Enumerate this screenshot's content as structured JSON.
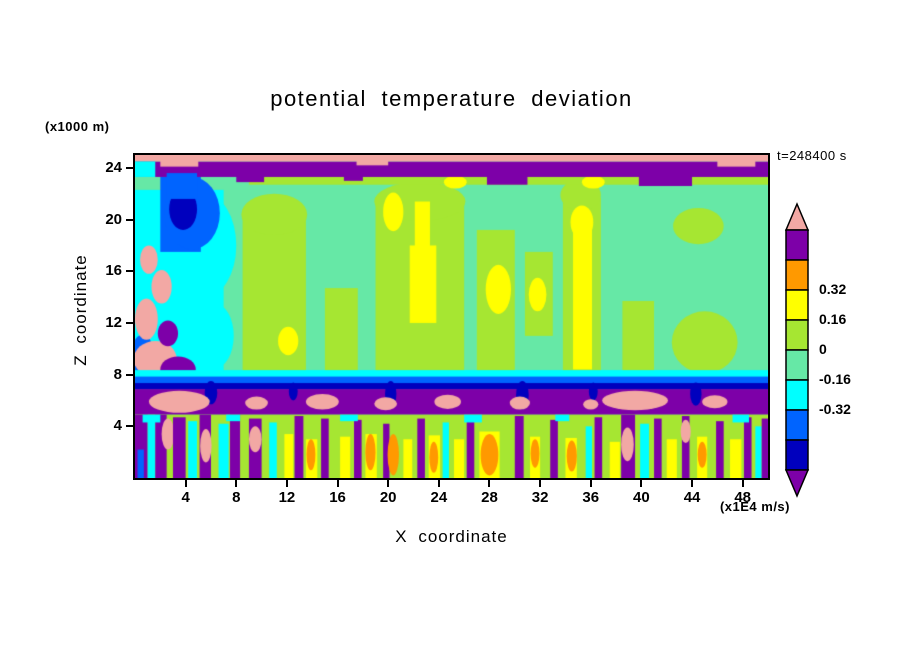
{
  "title": "potential temperature deviation",
  "annotation_time": "t=248400 s",
  "axes": {
    "x": {
      "label": "X coordinate",
      "units_note": "(x1E4 m/s)",
      "ticks": [
        4,
        8,
        12,
        16,
        20,
        24,
        28,
        32,
        36,
        40,
        44,
        48
      ]
    },
    "z": {
      "label": "Z coordinate",
      "units_note": "(x1000 m)",
      "ticks": [
        4,
        8,
        12,
        16,
        20,
        24
      ]
    }
  },
  "colorbar": {
    "labels": [
      "0.32",
      "0.16",
      "0",
      "-0.16",
      "-0.32"
    ],
    "segment_colors": [
      "#7D00A8",
      "#FF9900",
      "#FFFF00",
      "#A6E632",
      "#66E8A6",
      "#00FFFF",
      "#0064FF",
      "#0000BE"
    ],
    "arrow_top_color": "#F2A8A4",
    "arrow_bottom_color": "#7D00A8"
  },
  "chart_data": {
    "type": "heatmap",
    "title": "potential temperature deviation",
    "xlabel": "X coordinate (x1E4 m/s)",
    "ylabel": "Z coordinate (x1000 m)",
    "x_ticks": [
      4,
      8,
      12,
      16,
      20,
      24,
      28,
      32,
      36,
      40,
      44,
      48
    ],
    "z_ticks": [
      4,
      8,
      12,
      16,
      20,
      24
    ],
    "x_range": [
      0,
      50
    ],
    "z_range": [
      0,
      25
    ],
    "grid": false,
    "time_annotation": "t=248400 s",
    "levels": [
      -0.48,
      -0.4,
      -0.32,
      -0.16,
      0,
      0.16,
      0.32,
      0.4,
      0.48
    ],
    "colors": [
      "#7D00A8",
      "#0000BE",
      "#0064FF",
      "#00FFFF",
      "#66E8A6",
      "#A6E632",
      "#FFFF00",
      "#FF9900",
      "#7D00A8",
      "#F2A8A4"
    ],
    "regions": [
      [
        "r",
        0,
        0,
        50,
        25,
        -0.08
      ],
      [
        "r",
        0,
        7.8,
        7,
        14.5,
        -0.24
      ],
      [
        "e",
        5.5,
        18,
        2.5,
        4,
        -0.24
      ],
      [
        "e",
        6.3,
        11,
        1.5,
        2.5,
        -0.24
      ],
      [
        "r",
        2,
        17.5,
        3.2,
        5.8,
        -0.36
      ],
      [
        "e",
        4.5,
        20.5,
        2.2,
        2.8,
        -0.36
      ],
      [
        "e",
        3.8,
        20.8,
        1.1,
        1.6,
        -0.44
      ],
      [
        "e",
        0.6,
        9.5,
        0.9,
        1.6,
        -0.36
      ],
      [
        "e",
        1.6,
        9.2,
        1.7,
        1.4,
        0.5
      ],
      [
        "e",
        3.4,
        8.4,
        1.4,
        1.0,
        -0.5
      ],
      [
        "e",
        0.9,
        12.3,
        0.9,
        1.6,
        0.5
      ],
      [
        "e",
        2.1,
        14.8,
        0.8,
        1.3,
        0.5
      ],
      [
        "e",
        1.1,
        16.9,
        0.7,
        1.1,
        0.5
      ],
      [
        "e",
        2.6,
        11.2,
        0.8,
        1.0,
        -0.5
      ],
      [
        "r",
        8.5,
        8.2,
        5,
        12,
        0.08
      ],
      [
        "e",
        11,
        20.4,
        2.6,
        1.6,
        0.08
      ],
      [
        "r",
        15,
        8.2,
        2.6,
        6.5,
        0.08
      ],
      [
        "r",
        19,
        8.2,
        7,
        13,
        0.08
      ],
      [
        "e",
        22.5,
        21.4,
        3.6,
        1.5,
        0.08
      ],
      [
        "r",
        27,
        8.2,
        3,
        11,
        0.08
      ],
      [
        "r",
        30.8,
        11,
        2.2,
        6.5,
        0.08
      ],
      [
        "r",
        33.8,
        8.2,
        3,
        13.5,
        0.08
      ],
      [
        "e",
        35.2,
        21.9,
        1.6,
        1.2,
        0.08
      ],
      [
        "r",
        38.5,
        8.2,
        2.5,
        5.5,
        0.08
      ],
      [
        "e",
        45,
        10.5,
        2.6,
        2.4,
        0.08
      ],
      [
        "r",
        9,
        22.7,
        41,
        0.9,
        0.08
      ],
      [
        "e",
        44.5,
        19.5,
        2.0,
        1.4,
        0.08
      ],
      [
        "r",
        21.7,
        12,
        2.1,
        6,
        0.24
      ],
      [
        "r",
        22.1,
        17.8,
        1.2,
        3.6,
        0.24
      ],
      [
        "e",
        28.7,
        14.6,
        1.0,
        1.9,
        0.24
      ],
      [
        "r",
        34.6,
        8.4,
        1.5,
        11,
        0.24
      ],
      [
        "e",
        35.3,
        19.8,
        0.9,
        1.3,
        0.24
      ],
      [
        "e",
        20.4,
        20.6,
        0.8,
        1.5,
        0.24
      ],
      [
        "e",
        12.1,
        10.6,
        0.8,
        1.1,
        0.24
      ],
      [
        "e",
        31.8,
        14.2,
        0.7,
        1.3,
        0.24
      ],
      [
        "e",
        25.3,
        22.9,
        0.9,
        0.5,
        0.24
      ],
      [
        "e",
        36.2,
        22.9,
        0.9,
        0.5,
        0.24
      ],
      [
        "r",
        0,
        23.3,
        50,
        1.2,
        -0.5
      ],
      [
        "r",
        8,
        22.9,
        2.2,
        0.7,
        -0.5
      ],
      [
        "r",
        27.8,
        22.7,
        3.2,
        0.9,
        -0.5
      ],
      [
        "r",
        39.8,
        22.6,
        4.2,
        1.0,
        -0.5
      ],
      [
        "r",
        16.5,
        23.0,
        1.5,
        0.5,
        -0.5
      ],
      [
        "r",
        0,
        24.5,
        50,
        0.5,
        0.5
      ],
      [
        "r",
        2,
        24.1,
        3,
        0.5,
        0.5
      ],
      [
        "r",
        17.5,
        24.2,
        2.5,
        0.4,
        0.5
      ],
      [
        "r",
        46,
        24.1,
        3,
        0.5,
        0.5
      ],
      [
        "r",
        2.5,
        21.6,
        2.4,
        2.0,
        -0.36
      ],
      [
        "r",
        0,
        23.3,
        1.6,
        1.2,
        -0.24
      ],
      [
        "r",
        0,
        7.8,
        50,
        0.55,
        -0.24
      ],
      [
        "r",
        0,
        7.3,
        50,
        0.55,
        -0.36
      ],
      [
        "r",
        0,
        6.85,
        50,
        0.5,
        -0.44
      ],
      [
        "r",
        0,
        4.9,
        50,
        1.98,
        -0.5
      ],
      [
        "e",
        6,
        6.6,
        0.5,
        0.9,
        -0.44
      ],
      [
        "e",
        12.5,
        6.7,
        0.35,
        0.7,
        -0.44
      ],
      [
        "e",
        20.2,
        6.5,
        0.45,
        1.0,
        -0.44
      ],
      [
        "e",
        30.6,
        6.4,
        0.5,
        1.1,
        -0.44
      ],
      [
        "e",
        36.2,
        6.7,
        0.35,
        0.7,
        -0.44
      ],
      [
        "e",
        44.3,
        6.5,
        0.45,
        0.9,
        -0.44
      ],
      [
        "e",
        3.5,
        5.9,
        2.4,
        0.85,
        0.5
      ],
      [
        "e",
        9.6,
        5.8,
        0.9,
        0.5,
        0.5
      ],
      [
        "e",
        14.8,
        5.9,
        1.3,
        0.6,
        0.5
      ],
      [
        "e",
        19.8,
        5.75,
        0.9,
        0.5,
        0.5
      ],
      [
        "e",
        24.7,
        5.9,
        1.05,
        0.55,
        0.5
      ],
      [
        "e",
        30.4,
        5.8,
        0.8,
        0.5,
        0.5
      ],
      [
        "e",
        36.0,
        5.7,
        0.6,
        0.4,
        0.5
      ],
      [
        "e",
        39.5,
        6.0,
        2.6,
        0.75,
        0.5
      ],
      [
        "e",
        45.8,
        5.9,
        1.0,
        0.5,
        0.5
      ],
      [
        "r",
        0,
        0,
        50,
        4.9,
        0.08
      ],
      [
        "r",
        0,
        0,
        1.0,
        4.9,
        -0.5
      ],
      [
        "r",
        1.0,
        0,
        0.6,
        4.5,
        -0.24
      ],
      [
        "r",
        1.6,
        0,
        0.9,
        4.9,
        -0.5
      ],
      [
        "e",
        2.6,
        3.4,
        0.5,
        1.2,
        0.5
      ],
      [
        "r",
        3.0,
        0,
        1.0,
        4.7,
        -0.5
      ],
      [
        "r",
        4.2,
        0,
        0.7,
        4.4,
        -0.24
      ],
      [
        "r",
        5.1,
        0,
        0.9,
        4.9,
        -0.5
      ],
      [
        "e",
        5.6,
        2.5,
        0.45,
        1.3,
        0.5
      ],
      [
        "r",
        6.6,
        0,
        0.8,
        4.2,
        -0.24
      ],
      [
        "r",
        7.5,
        0,
        0.8,
        4.9,
        -0.5
      ],
      [
        "r",
        9.0,
        0,
        1.0,
        4.6,
        -0.5
      ],
      [
        "e",
        9.5,
        3.0,
        0.5,
        1.0,
        0.5
      ],
      [
        "r",
        10.6,
        0,
        0.6,
        4.3,
        -0.24
      ],
      [
        "r",
        11.8,
        0,
        0.7,
        3.4,
        0.24
      ],
      [
        "r",
        12.6,
        0,
        0.7,
        4.8,
        -0.5
      ],
      [
        "r",
        13.5,
        0,
        0.9,
        3.0,
        0.24
      ],
      [
        "e",
        13.9,
        1.8,
        0.35,
        1.2,
        0.36
      ],
      [
        "r",
        14.7,
        0,
        0.6,
        4.6,
        -0.5
      ],
      [
        "r",
        16.2,
        0,
        0.8,
        3.2,
        0.24
      ],
      [
        "r",
        17.3,
        0,
        0.6,
        4.5,
        -0.5
      ],
      [
        "r",
        18.2,
        0,
        0.9,
        3.4,
        0.24
      ],
      [
        "e",
        18.6,
        2.0,
        0.4,
        1.4,
        0.36
      ],
      [
        "r",
        19.6,
        0,
        0.5,
        4.2,
        -0.5
      ],
      [
        "e",
        20.4,
        1.8,
        0.45,
        1.6,
        0.36
      ],
      [
        "r",
        21.2,
        0,
        0.7,
        3.0,
        0.24
      ],
      [
        "r",
        22.3,
        0,
        0.6,
        4.6,
        -0.5
      ],
      [
        "r",
        23.2,
        0,
        0.9,
        3.3,
        0.24
      ],
      [
        "e",
        23.6,
        1.6,
        0.35,
        1.2,
        0.36
      ],
      [
        "r",
        24.3,
        0,
        0.5,
        4.3,
        -0.24
      ],
      [
        "r",
        25.2,
        0,
        0.8,
        3.0,
        0.24
      ],
      [
        "r",
        26.2,
        0,
        0.6,
        4.7,
        -0.5
      ],
      [
        "r",
        27.2,
        0,
        1.6,
        3.6,
        0.24
      ],
      [
        "e",
        28.0,
        1.8,
        0.7,
        1.6,
        0.36
      ],
      [
        "r",
        30.0,
        0,
        0.7,
        4.8,
        -0.5
      ],
      [
        "r",
        31.2,
        0,
        0.8,
        3.2,
        0.24
      ],
      [
        "e",
        31.6,
        1.9,
        0.35,
        1.1,
        0.36
      ],
      [
        "r",
        32.8,
        0,
        0.6,
        4.5,
        -0.5
      ],
      [
        "r",
        34.0,
        0,
        0.9,
        3.1,
        0.24
      ],
      [
        "e",
        34.5,
        1.7,
        0.4,
        1.2,
        0.36
      ],
      [
        "r",
        35.6,
        0,
        0.5,
        4.0,
        -0.24
      ],
      [
        "r",
        36.3,
        0,
        0.6,
        4.7,
        -0.5
      ],
      [
        "r",
        37.5,
        0,
        0.8,
        2.8,
        0.24
      ],
      [
        "r",
        38.4,
        0,
        1.1,
        4.9,
        -0.5
      ],
      [
        "e",
        38.9,
        2.6,
        0.5,
        1.3,
        0.5
      ],
      [
        "r",
        39.9,
        0,
        0.7,
        4.2,
        -0.24
      ],
      [
        "r",
        41.0,
        0,
        0.6,
        4.6,
        -0.5
      ],
      [
        "r",
        42.0,
        0,
        0.8,
        3.0,
        0.24
      ],
      [
        "r",
        43.2,
        0,
        0.6,
        4.8,
        -0.5
      ],
      [
        "e",
        43.5,
        3.6,
        0.4,
        0.9,
        0.5
      ],
      [
        "r",
        44.4,
        0,
        0.8,
        3.2,
        0.24
      ],
      [
        "e",
        44.8,
        1.8,
        0.35,
        1.0,
        0.36
      ],
      [
        "r",
        45.9,
        0,
        0.6,
        4.4,
        -0.5
      ],
      [
        "r",
        47.0,
        0,
        0.9,
        3.0,
        0.24
      ],
      [
        "r",
        48.1,
        0,
        0.6,
        4.7,
        -0.5
      ],
      [
        "r",
        49.0,
        0,
        0.5,
        4.0,
        -0.24
      ],
      [
        "r",
        49.5,
        0,
        0.5,
        4.6,
        -0.5
      ],
      [
        "r",
        0.2,
        0,
        0.5,
        2.2,
        -0.36
      ],
      [
        "r",
        0.6,
        4.3,
        1.4,
        0.6,
        -0.24
      ],
      [
        "r",
        7.2,
        4.4,
        1.1,
        0.5,
        -0.24
      ],
      [
        "r",
        16.2,
        4.4,
        1.4,
        0.5,
        -0.24
      ],
      [
        "r",
        26.0,
        4.3,
        1.4,
        0.6,
        -0.24
      ],
      [
        "r",
        33.2,
        4.4,
        1.1,
        0.5,
        -0.24
      ],
      [
        "r",
        47.2,
        4.3,
        1.3,
        0.6,
        -0.24
      ]
    ]
  }
}
